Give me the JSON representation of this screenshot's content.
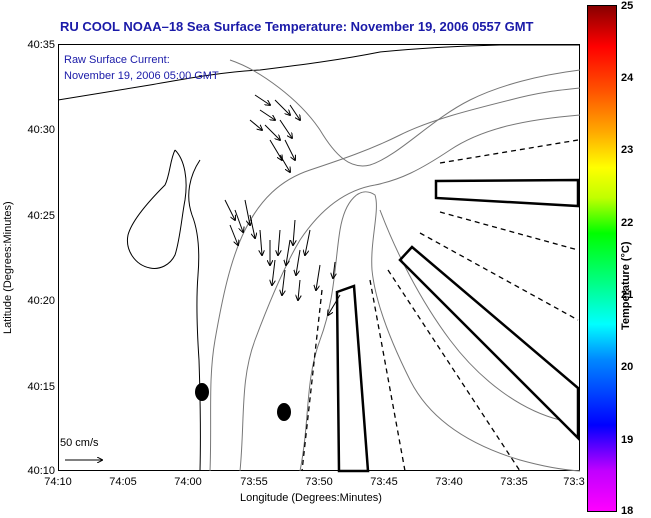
{
  "title": "RU COOL  NOAA–18  Sea Surface Temperature:  November 19, 2006 0557 GMT",
  "overlay": {
    "line1": "Raw Surface Current:",
    "line2": "November 19, 2006 05:00 GMT",
    "scale_label": "50 cm/s"
  },
  "axes": {
    "xlabel": "Longitude (Degrees:Minutes)",
    "ylabel": "Latitude (Degrees:Minutes)",
    "xticks": [
      "74:10",
      "74:05",
      "74:00",
      "73:55",
      "73:50",
      "73:45",
      "73:40",
      "73:35",
      "73:3"
    ],
    "yticks": [
      "40:35",
      "40:30",
      "40:25",
      "40:20",
      "40:15",
      "40:10"
    ]
  },
  "colorbar": {
    "title": "Temperature (°C)",
    "ticks": [
      "25",
      "24",
      "23",
      "22",
      "21",
      "20",
      "19",
      "18"
    ]
  }
}
